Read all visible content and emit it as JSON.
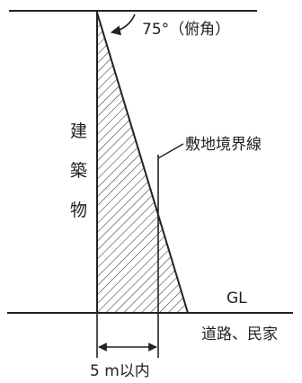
{
  "diagram": {
    "angle_label": "75°（俯角）",
    "building_label": "建築物",
    "boundary_label": "敷地境界線",
    "ground_label": "GL",
    "road_label": "道路、民家",
    "distance_label": "5 m以内"
  },
  "colors": {
    "ink": "#222222",
    "background": "#ffffff"
  }
}
